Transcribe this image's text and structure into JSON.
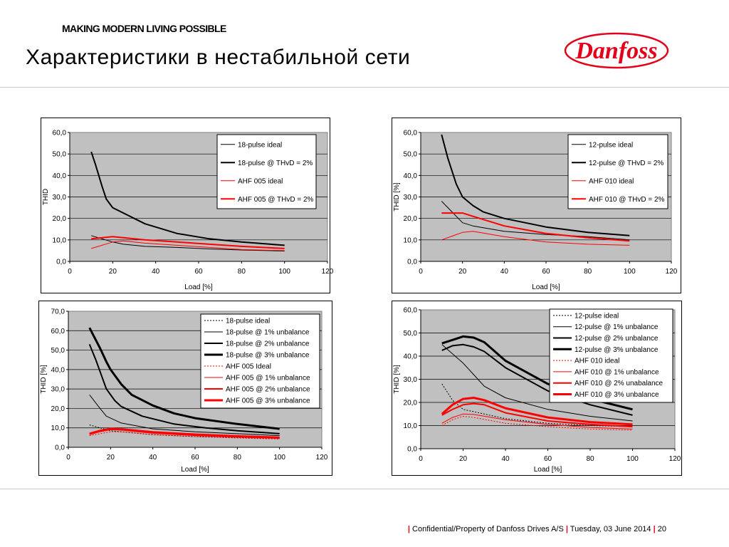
{
  "header": {
    "tagline": "MAKING MODERN LIVING POSSIBLE",
    "title": "Характеристики в нестабильной сети",
    "logo_text": "Danfoss",
    "brand_color": "#e2001a"
  },
  "footer": {
    "text1": "Confidential/Property of Danfoss Drives A/S",
    "text2": "Tuesday, 03 June 2014",
    "page_number": "20"
  },
  "chart_data": [
    {
      "type": "line",
      "ylabel": "THID",
      "xlabel": "Load [%]",
      "xlim": [
        0,
        120
      ],
      "ylim": [
        0,
        60
      ],
      "xticks": [
        "0",
        "20",
        "40",
        "60",
        "80",
        "100",
        "120"
      ],
      "yticks": [
        "0,0",
        "10,0",
        "20,0",
        "30,0",
        "40,0",
        "50,0",
        "60,0"
      ],
      "plot_background": "#c0c0c0",
      "grid": "horizontal",
      "legend": "top-right",
      "series": [
        {
          "name": "18-pulse ideal",
          "color": "#000000",
          "width": 1,
          "dash": "",
          "x": [
            10,
            20,
            25,
            35,
            50,
            65,
            80,
            100
          ],
          "y": [
            12,
            9,
            8,
            7,
            6.5,
            5.8,
            5.3,
            4.8
          ]
        },
        {
          "name": "18-pulse @ THvD = 2%",
          "color": "#000000",
          "width": 2,
          "dash": "",
          "x": [
            10,
            12,
            15,
            17,
            20,
            25,
            35,
            50,
            65,
            80,
            100
          ],
          "y": [
            51,
            45,
            35,
            29,
            25,
            22.5,
            17.5,
            13,
            10.5,
            9,
            7.5
          ]
        },
        {
          "name": "AHF 005 ideal",
          "color": "#ff0000",
          "width": 1,
          "dash": "",
          "x": [
            10,
            20,
            25,
            35,
            50,
            65,
            80,
            100
          ],
          "y": [
            6,
            9,
            9.5,
            8.5,
            7.5,
            6.5,
            5.5,
            5
          ]
        },
        {
          "name": "AHF 005 @ THvD = 2%",
          "color": "#ff0000",
          "width": 2,
          "dash": "",
          "x": [
            10,
            15,
            20,
            25,
            35,
            50,
            65,
            80,
            100
          ],
          "y": [
            10.5,
            11,
            11.5,
            11,
            10,
            9,
            8,
            7,
            6
          ]
        }
      ]
    },
    {
      "type": "line",
      "ylabel": "THID [%]",
      "xlabel": "Load [%]",
      "xlim": [
        0,
        120
      ],
      "ylim": [
        0,
        60
      ],
      "xticks": [
        "0",
        "20",
        "40",
        "60",
        "80",
        "100",
        "120"
      ],
      "yticks": [
        "0,0",
        "10,0",
        "20,0",
        "30,0",
        "40,0",
        "50,0",
        "60,0"
      ],
      "plot_background": "#c0c0c0",
      "grid": "horizontal",
      "legend": "top-right",
      "series": [
        {
          "name": "12-pulse ideal",
          "color": "#000000",
          "width": 1,
          "dash": "",
          "x": [
            10,
            20,
            25,
            40,
            60,
            80,
            100
          ],
          "y": [
            28,
            18,
            16.5,
            14,
            12.5,
            11.5,
            10
          ]
        },
        {
          "name": "12-pulse @ THvD = 2%",
          "color": "#000000",
          "width": 2,
          "dash": "",
          "x": [
            10,
            13,
            17,
            20,
            25,
            30,
            40,
            60,
            80,
            100
          ],
          "y": [
            59,
            48,
            36,
            30,
            26,
            23,
            20,
            16,
            13.5,
            12
          ]
        },
        {
          "name": "AHF 010 ideal",
          "color": "#ff0000",
          "width": 1,
          "dash": "",
          "x": [
            10,
            20,
            25,
            40,
            60,
            80,
            100
          ],
          "y": [
            10,
            13.5,
            14,
            11.5,
            9,
            8,
            7.5
          ]
        },
        {
          "name": "AHF 010 @ THvD = 2%",
          "color": "#ff0000",
          "width": 2,
          "dash": "",
          "x": [
            10,
            20,
            25,
            40,
            60,
            80,
            100
          ],
          "y": [
            22.5,
            22.5,
            21,
            16.5,
            13,
            11,
            9.5
          ]
        }
      ]
    },
    {
      "type": "line",
      "ylabel": "THID [%]",
      "xlabel": "Load [%]",
      "xlim": [
        0,
        120
      ],
      "ylim": [
        0,
        70
      ],
      "xticks": [
        "0",
        "20",
        "40",
        "60",
        "80",
        "100",
        "120"
      ],
      "yticks": [
        "0,0",
        "10,0",
        "20,0",
        "30,0",
        "40,0",
        "50,0",
        "60,0",
        "70,0"
      ],
      "plot_background": "#c0c0c0",
      "grid": "horizontal",
      "legend": "top-right",
      "series": [
        {
          "name": "18-pulse ideal",
          "color": "#000000",
          "width": 1,
          "dash": "2,2",
          "x": [
            10,
            15,
            20,
            25,
            40,
            60,
            80,
            100
          ],
          "y": [
            11.5,
            10,
            8.5,
            8,
            6.5,
            5.5,
            5,
            4.5
          ]
        },
        {
          "name": "18-pulse @ 1% unbalance",
          "color": "#000000",
          "width": 1,
          "dash": "",
          "x": [
            10,
            15,
            18,
            25,
            40,
            60,
            80,
            100
          ],
          "y": [
            27,
            20,
            16,
            12.5,
            9.5,
            8,
            7,
            6
          ]
        },
        {
          "name": "18-pulse @ 2% unbalance",
          "color": "#000000",
          "width": 2,
          "dash": "",
          "x": [
            10,
            13,
            16,
            18,
            22,
            25,
            35,
            50,
            65,
            80,
            100
          ],
          "y": [
            53,
            45,
            36,
            30,
            24,
            21,
            16,
            12,
            10,
            8.5,
            7
          ]
        },
        {
          "name": "18-pulse @ 3% unbalance",
          "color": "#000000",
          "width": 3,
          "dash": "",
          "x": [
            10,
            15,
            18,
            20,
            25,
            30,
            40,
            50,
            60,
            80,
            100
          ],
          "y": [
            61.5,
            51,
            44,
            40,
            32.5,
            27,
            21.5,
            17.5,
            15,
            12,
            9.5
          ]
        },
        {
          "name": "AHF 005 Ideal",
          "color": "#ff0000",
          "width": 1,
          "dash": "2,2",
          "x": [
            10,
            15,
            20,
            25,
            40,
            60,
            80,
            100
          ],
          "y": [
            6,
            7,
            8,
            8,
            6.5,
            5.5,
            4.8,
            4.2
          ]
        },
        {
          "name": "AHF 005 @ 1% unbalance",
          "color": "#ff0000",
          "width": 1,
          "dash": "",
          "x": [
            10,
            15,
            20,
            25,
            40,
            60,
            80,
            100
          ],
          "y": [
            6.5,
            8,
            9,
            8.8,
            7.2,
            6,
            5.2,
            4.6
          ]
        },
        {
          "name": "AHF 005 @ 2% unbalance",
          "color": "#ff0000",
          "width": 2,
          "dash": "",
          "x": [
            10,
            15,
            20,
            25,
            40,
            60,
            80,
            100
          ],
          "y": [
            7,
            8.5,
            9.3,
            9.2,
            7.6,
            6.4,
            5.5,
            4.8
          ]
        },
        {
          "name": "AHF 005 @ 3% unbalance",
          "color": "#ff0000",
          "width": 3,
          "dash": "",
          "x": [
            10,
            15,
            20,
            25,
            40,
            60,
            80,
            100
          ],
          "y": [
            7,
            8.5,
            9.5,
            9.3,
            7.8,
            6.6,
            5.7,
            5
          ]
        }
      ]
    },
    {
      "type": "line",
      "ylabel": "THID [%]",
      "xlabel": "Load [%]",
      "xlim": [
        0,
        120
      ],
      "ylim": [
        0,
        60
      ],
      "xticks": [
        "0",
        "20",
        "40",
        "60",
        "80",
        "100",
        "120"
      ],
      "yticks": [
        "0,0",
        "10,0",
        "20,0",
        "30,0",
        "40,0",
        "50,0",
        "60,0"
      ],
      "plot_background": "#c0c0c0",
      "grid": "horizontal",
      "legend": "top-right",
      "series": [
        {
          "name": "12-pulse ideal",
          "color": "#000000",
          "width": 1,
          "dash": "2,2",
          "x": [
            10,
            15,
            20,
            25,
            40,
            60,
            80,
            100
          ],
          "y": [
            28,
            21,
            17,
            16,
            13,
            11,
            10,
            9.5
          ]
        },
        {
          "name": "12-pulse @ 1% unbalance",
          "color": "#000000",
          "width": 1,
          "dash": "",
          "x": [
            10,
            20,
            25,
            30,
            40,
            60,
            80,
            100
          ],
          "y": [
            45,
            37,
            32,
            27,
            22,
            17,
            14,
            12
          ]
        },
        {
          "name": "12-pulse @ 2% unbalance",
          "color": "#000000",
          "width": 2,
          "dash": "",
          "x": [
            10,
            15,
            20,
            25,
            30,
            40,
            60,
            80,
            100
          ],
          "y": [
            42.5,
            44.5,
            45,
            44,
            42,
            35,
            25,
            19,
            14.5
          ]
        },
        {
          "name": "12-pulse @ 3% unbalance",
          "color": "#000000",
          "width": 3,
          "dash": "",
          "x": [
            10,
            15,
            20,
            25,
            30,
            40,
            60,
            80,
            100
          ],
          "y": [
            45.5,
            47,
            48.5,
            48,
            46,
            38,
            28,
            21.5,
            17
          ]
        },
        {
          "name": "AHF 010 ideal",
          "color": "#ff0000",
          "width": 1,
          "dash": "2,2",
          "x": [
            10,
            15,
            20,
            25,
            40,
            60,
            80,
            100
          ],
          "y": [
            10,
            12.5,
            14,
            13.5,
            11,
            9.5,
            8.5,
            8
          ]
        },
        {
          "name": "AHF 010 @ 1% unbalance",
          "color": "#ff0000",
          "width": 1,
          "dash": "",
          "x": [
            10,
            15,
            20,
            25,
            40,
            60,
            80,
            100
          ],
          "y": [
            11,
            13.5,
            15,
            14.8,
            12.5,
            10.5,
            9.2,
            8.5
          ]
        },
        {
          "name": "AHF 010 @ 2% unabalance",
          "color": "#ff0000",
          "width": 2,
          "dash": "",
          "x": [
            10,
            15,
            20,
            25,
            30,
            40,
            60,
            80,
            100
          ],
          "y": [
            14.5,
            17,
            19,
            19.5,
            19,
            15.5,
            12,
            10.5,
            9.5
          ]
        },
        {
          "name": "AHF 010 @ 3% unbalance",
          "color": "#ff0000",
          "width": 3,
          "dash": "",
          "x": [
            10,
            15,
            20,
            25,
            30,
            40,
            60,
            80,
            100
          ],
          "y": [
            15,
            19,
            21.5,
            22,
            21,
            17.5,
            13.5,
            11.5,
            10.5
          ]
        }
      ]
    }
  ]
}
